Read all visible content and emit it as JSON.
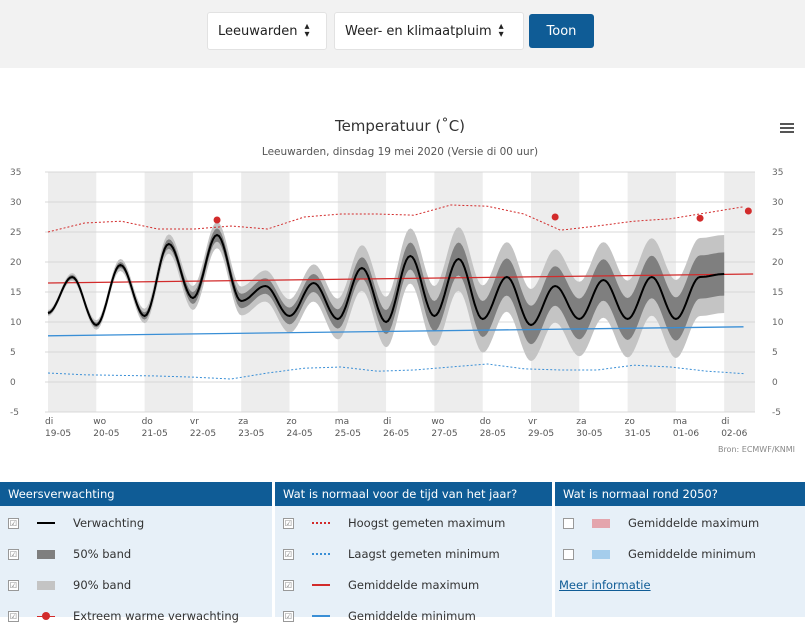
{
  "controls": {
    "location": "Leeuwarden",
    "view": "Weer- en klimaatpluim",
    "button": "Toon"
  },
  "chart": {
    "title": "Temperatuur (˚C)",
    "subtitle": "Leeuwarden, dinsdag 19 mei 2020 (Versie di 00 uur)",
    "credit": "Bron: ECMWF/KNMI"
  },
  "chart_data": {
    "type": "line",
    "ylim": [
      -5,
      35
    ],
    "yticks": [
      -5,
      0,
      5,
      10,
      15,
      20,
      25,
      30,
      35
    ],
    "x_days": [
      {
        "day": "di",
        "date": "19-05"
      },
      {
        "day": "wo",
        "date": "20-05"
      },
      {
        "day": "do",
        "date": "21-05"
      },
      {
        "day": "vr",
        "date": "22-05"
      },
      {
        "day": "za",
        "date": "23-05"
      },
      {
        "day": "zo",
        "date": "24-05"
      },
      {
        "day": "ma",
        "date": "25-05"
      },
      {
        "day": "di",
        "date": "26-05"
      },
      {
        "day": "wo",
        "date": "27-05"
      },
      {
        "day": "do",
        "date": "28-05"
      },
      {
        "day": "vr",
        "date": "29-05"
      },
      {
        "day": "za",
        "date": "30-05"
      },
      {
        "day": "zo",
        "date": "31-05"
      },
      {
        "day": "ma",
        "date": "01-06"
      },
      {
        "day": "di",
        "date": "02-06"
      }
    ],
    "forecast_peaks": [
      17.5,
      19.5,
      23.0,
      24.5,
      16.0,
      16.5,
      19.0,
      21.0,
      20.5,
      17.5,
      16.0,
      17.0,
      17.5,
      17.5
    ],
    "forecast_troughs": [
      11.5,
      9.5,
      11.0,
      14.0,
      13.5,
      11.0,
      10.5,
      10.0,
      11.0,
      10.5,
      9.5,
      10.5,
      10.5,
      10.5
    ],
    "forecast_end": 18.0,
    "band50_halfwidth": [
      0.3,
      0.4,
      0.6,
      1.0,
      1.2,
      1.4,
      1.6,
      2.0,
      2.5,
      3.0,
      3.2,
      3.4,
      3.5,
      3.6,
      3.6
    ],
    "band90_halfwidth": [
      0.5,
      0.8,
      1.2,
      2.0,
      2.4,
      2.8,
      3.4,
      4.2,
      5.0,
      5.6,
      6.0,
      6.2,
      6.4,
      6.5,
      6.5
    ],
    "extreme_warm_points": [
      {
        "x": 3.5,
        "y": 27
      },
      {
        "x": 10.5,
        "y": 27.5
      },
      {
        "x": 13.5,
        "y": 27.3
      },
      {
        "x": 14.5,
        "y": 28.5
      }
    ],
    "highest_max": [
      25,
      26.5,
      26.8,
      25.5,
      25.5,
      26,
      25.5,
      27.5,
      28,
      28,
      27.8,
      29.5,
      29.3,
      28,
      25.3,
      26,
      26.8,
      27.2,
      28.2,
      29.2
    ],
    "lowest_min": [
      1.5,
      1.2,
      1.1,
      1.0,
      0.8,
      0.5,
      1.5,
      2.3,
      2.5,
      1.8,
      2.0,
      2.5,
      3.0,
      2.2,
      2.0,
      2.0,
      2.8,
      2.5,
      1.8,
      1.4
    ],
    "avg_max": [
      16.5,
      18
    ],
    "avg_min": [
      7.7,
      9.2
    ]
  },
  "legend": {
    "col1": {
      "header": "Weersverwachting",
      "items": [
        "Verwachting",
        "50% band",
        "90% band",
        "Extreem warme verwachting"
      ]
    },
    "col2": {
      "header": "Wat is normaal voor de tijd van het jaar?",
      "items": [
        "Hoogst gemeten maximum",
        "Laagst gemeten minimum",
        "Gemiddelde maximum",
        "Gemiddelde minimum"
      ]
    },
    "col3": {
      "header": "Wat is normaal rond 2050?",
      "items": [
        "Gemiddelde maximum",
        "Gemiddelde minimum"
      ],
      "link": "Meer informatie"
    },
    "check": "☑",
    "colors": {
      "forecast": "#000000",
      "band50": "#7f7f7f",
      "band90": "#c4c4c4",
      "extreme": "#d22b2b",
      "record": "#d22b2b",
      "avgmax": "#d22b2b",
      "avgmin": "#3a8fd6",
      "future_max": "#e4a5ad",
      "future_min": "#a5cdec"
    }
  }
}
